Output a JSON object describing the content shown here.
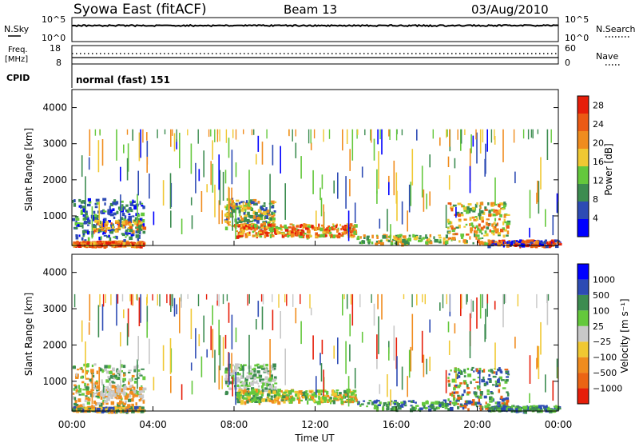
{
  "header": {
    "station": "Syowa East (fitACF)",
    "beam": "Beam 13",
    "date": "03/Aug/2010"
  },
  "top_panel": {
    "left_label": "N.Sky",
    "right_label": "N.Search",
    "left_ticks": [
      "10^5",
      "10^0"
    ],
    "right_ticks": [
      "10^5",
      "10^0"
    ]
  },
  "freq_panel": {
    "left_label_1": "Freq.",
    "left_label_2": "[MHz]",
    "right_label": "Nave",
    "left_ticks": [
      "18",
      "8"
    ],
    "right_ticks": [
      "60",
      "0"
    ]
  },
  "cpid": {
    "label": "CPID",
    "value": "normal (fast) 151"
  },
  "colors": {
    "power": [
      "#0000ff",
      "#2d4bb4",
      "#3c8c50",
      "#64c83c",
      "#f0c832",
      "#f08c1e",
      "#eb5a14",
      "#e61e0a"
    ],
    "velocity": [
      "#e61e0a",
      "#eb6414",
      "#f08c1e",
      "#f0c832",
      "#c8c8c8",
      "#64c83c",
      "#3c8c50",
      "#2d4bb4",
      "#0000ff"
    ]
  },
  "chart_data": [
    {
      "type": "heatmap",
      "name": "power",
      "ylabel": "Slant Range [km]",
      "yticks": [
        "1000",
        "2000",
        "3000",
        "4000"
      ],
      "ylim": [
        180,
        4500
      ],
      "xlim_hours": [
        0,
        24
      ],
      "colorbar_label": "Power [dB]",
      "colorbar_ticks": [
        "4",
        "8",
        "12",
        "16",
        "20",
        "24",
        "28"
      ],
      "colorbar_range": [
        0,
        30
      ]
    },
    {
      "type": "heatmap",
      "name": "velocity",
      "ylabel": "Slant Range [km]",
      "yticks": [
        "1000",
        "2000",
        "3000",
        "4000"
      ],
      "ylim": [
        180,
        4500
      ],
      "xlim_hours": [
        0,
        24
      ],
      "colorbar_label": "Velocity [m s⁻¹]",
      "colorbar_ticks": [
        "1000",
        "500",
        "100",
        "25",
        "−25",
        "−100",
        "−500",
        "−1000"
      ],
      "xticks": [
        "00:00",
        "04:00",
        "08:00",
        "12:00",
        "16:00",
        "20:00",
        "00:00"
      ],
      "xlabel": "Time UT"
    }
  ]
}
